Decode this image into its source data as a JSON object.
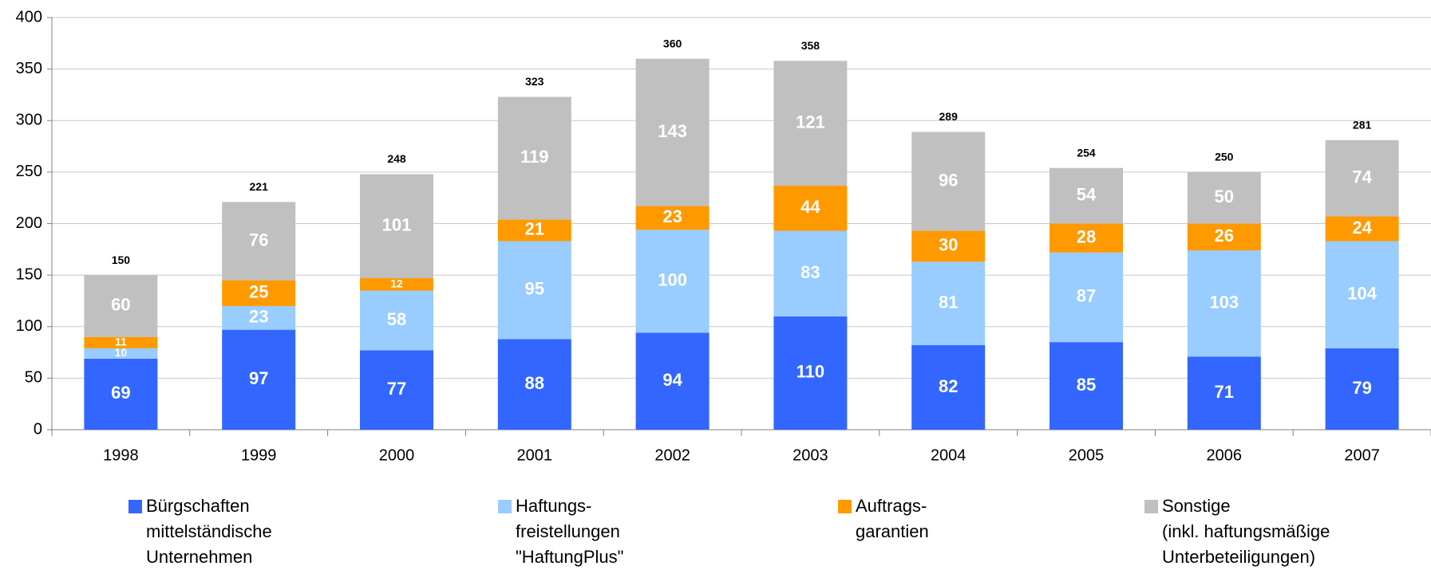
{
  "chart_data": {
    "type": "stacked_bar",
    "categories": [
      "1998",
      "1999",
      "2000",
      "2001",
      "2002",
      "2003",
      "2004",
      "2005",
      "2006",
      "2007"
    ],
    "series": [
      {
        "name": "Bürgschaften\nmittelständische\nUnternehmen",
        "color": "#3366ff",
        "values": [
          69,
          97,
          77,
          88,
          94,
          110,
          82,
          85,
          71,
          79
        ]
      },
      {
        "name": "Haftungs-\nfreistellungen\n\"HaftungPlus\"",
        "color": "#99ccff",
        "values": [
          10,
          23,
          58,
          95,
          100,
          83,
          81,
          87,
          103,
          104
        ]
      },
      {
        "name": "Auftrags-\ngarantien",
        "color": "#ff9900",
        "values": [
          11,
          25,
          12,
          21,
          23,
          44,
          30,
          28,
          26,
          24
        ]
      },
      {
        "name": "Sonstige\n(inkl. haftungsmäßige\nUnterbeteiligungen)",
        "color": "#c0c0c0",
        "values": [
          60,
          76,
          101,
          119,
          143,
          121,
          96,
          54,
          50,
          74
        ]
      }
    ],
    "totals": [
      150,
      221,
      248,
      323,
      360,
      358,
      289,
      254,
      250,
      281
    ],
    "ylim": [
      0,
      400
    ],
    "yticks": [
      0,
      50,
      100,
      150,
      200,
      250,
      300,
      350,
      400
    ],
    "grid": true
  }
}
